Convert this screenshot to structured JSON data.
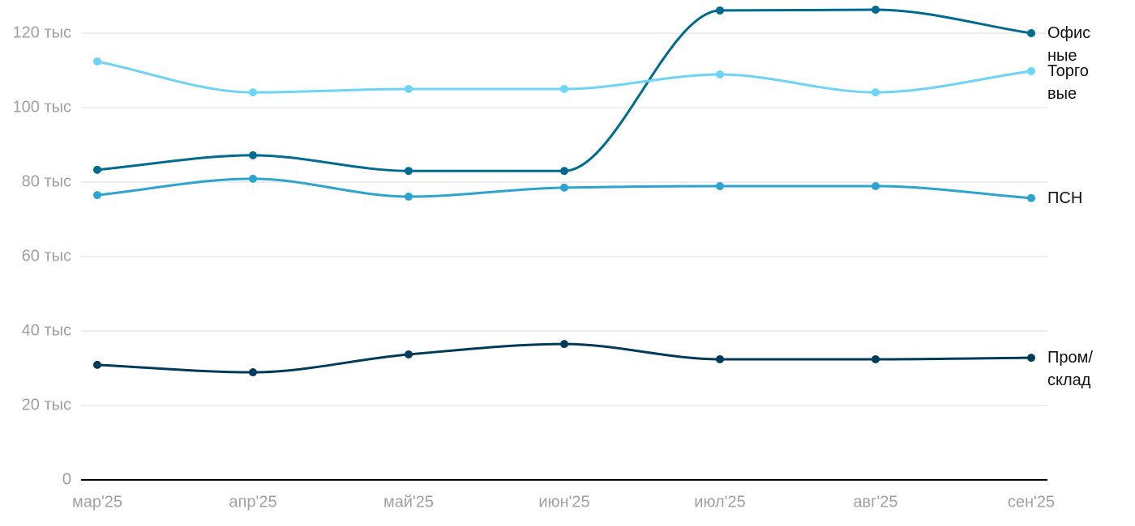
{
  "chart_data": {
    "type": "line",
    "categories": [
      "мар'25",
      "апр'25",
      "май'25",
      "июн'25",
      "июл'25",
      "авг'25",
      "сен'25"
    ],
    "series": [
      {
        "name": "Офисные",
        "color": "#006a90",
        "values": [
          83300,
          87200,
          83000,
          83000,
          126100,
          126300,
          120000
        ]
      },
      {
        "name": "Торговые",
        "color": "#6dd4f7",
        "values": [
          112400,
          104100,
          105000,
          105000,
          108900,
          104100,
          109800
        ]
      },
      {
        "name": "ПСН",
        "color": "#2ba4d0",
        "values": [
          76500,
          80900,
          76100,
          78500,
          78900,
          78900,
          75700
        ]
      },
      {
        "name": "Пром/склад",
        "color": "#003b5a",
        "values": [
          30900,
          28900,
          33700,
          36500,
          32400,
          32400,
          32800
        ]
      }
    ],
    "ylim": [
      0,
      128000
    ],
    "yticks": [
      0,
      {
        "value": 20000,
        "label": "20 тыс"
      },
      {
        "value": 40000,
        "label": "40 тыс"
      },
      {
        "value": 60000,
        "label": "60 тыс"
      },
      {
        "value": 80000,
        "label": "80 тыс"
      },
      {
        "value": 100000,
        "label": "100 тыс"
      },
      {
        "value": 120000,
        "label": "120 тыс"
      }
    ],
    "grid": true
  }
}
